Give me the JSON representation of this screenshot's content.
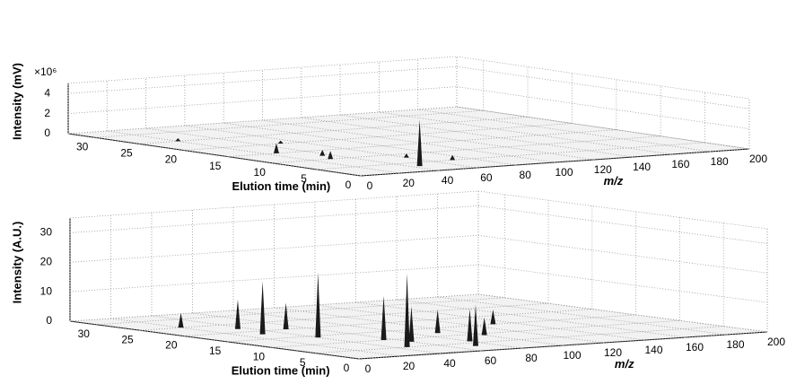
{
  "chart_data": [
    {
      "type": "surface3d",
      "zlabel": "Intensity (mV)",
      "ylabel": "Elution time (min)",
      "xlabel": "m/z",
      "z_multiplier_label": "×10⁶",
      "xlim": [
        0,
        200
      ],
      "xticks": [
        0,
        20,
        40,
        60,
        80,
        100,
        120,
        140,
        160,
        180,
        200
      ],
      "ylim": [
        0,
        33
      ],
      "yticks": [
        0,
        5,
        10,
        15,
        20,
        25,
        30
      ],
      "zlim": [
        0,
        5
      ],
      "zticks": [
        0,
        2,
        4
      ],
      "grid": true,
      "color": "#1a1a1a",
      "peaks": {
        "x": [
          44,
          30,
          25,
          35,
          60,
          50,
          70,
          20
        ],
        "y": [
          3,
          10,
          15,
          12,
          8,
          20,
          5,
          25
        ],
        "z": [
          4.6,
          0.8,
          1.0,
          0.6,
          0.4,
          0.3,
          0.5,
          0.3
        ]
      }
    },
    {
      "type": "surface3d",
      "zlabel": "Intensity (A.U.)",
      "ylabel": "Elution time (min)",
      "xlabel": "m/z",
      "xlim": [
        0,
        200
      ],
      "xticks": [
        0,
        20,
        40,
        60,
        80,
        100,
        120,
        140,
        160,
        180,
        200
      ],
      "ylim": [
        0,
        33
      ],
      "yticks": [
        0,
        5,
        10,
        15,
        20,
        25,
        30
      ],
      "zlim": [
        0,
        35
      ],
      "zticks": [
        0,
        10,
        20,
        30
      ],
      "grid": true,
      "color": "#1a1a1a",
      "peaks": {
        "x": [
          45,
          40,
          30,
          55,
          70,
          60,
          35,
          90,
          100,
          20,
          130,
          50,
          80
        ],
        "y": [
          5,
          14,
          18,
          10,
          3,
          8,
          22,
          12,
          9,
          25,
          15,
          20,
          6
        ],
        "z": [
          25,
          22,
          18,
          15,
          14,
          12,
          10,
          8,
          6,
          5,
          5,
          9,
          11
        ]
      }
    }
  ]
}
